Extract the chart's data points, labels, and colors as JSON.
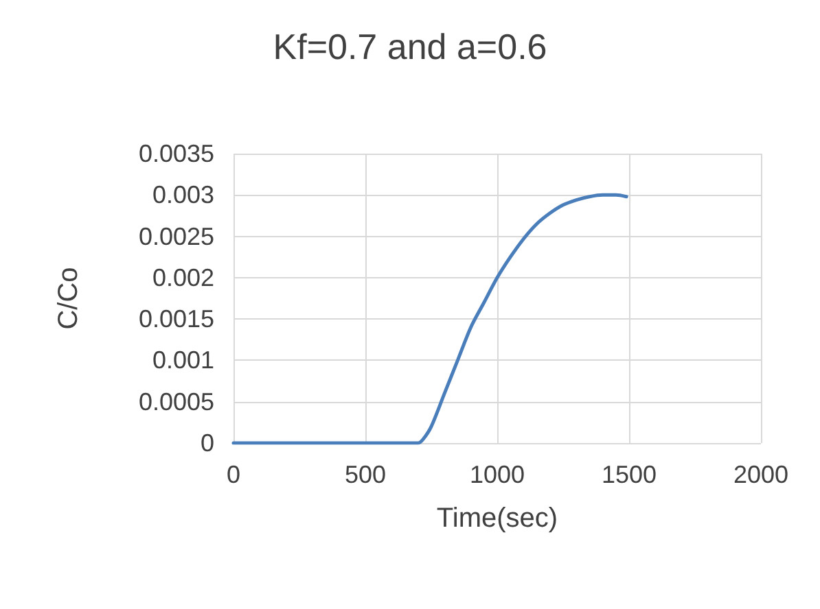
{
  "chart_data": {
    "type": "line",
    "title": "Kf=0.7 and a=0.6",
    "xlabel": "Time(sec)",
    "ylabel": "C/Co",
    "x": [
      0,
      100,
      200,
      300,
      400,
      500,
      600,
      700,
      720,
      750,
      800,
      850,
      900,
      950,
      1000,
      1050,
      1100,
      1150,
      1200,
      1250,
      1300,
      1350,
      1400,
      1450,
      1490
    ],
    "series": [
      {
        "color": "#4a7ebb",
        "values": [
          0,
          0,
          0,
          0,
          0,
          0,
          0,
          0,
          5e-05,
          0.0002,
          0.0006,
          0.001,
          0.0014,
          0.0017,
          0.002,
          0.00225,
          0.00247,
          0.00265,
          0.00278,
          0.00288,
          0.00294,
          0.00298,
          0.003,
          0.003,
          0.00298
        ]
      }
    ],
    "xlim": [
      0,
      2000
    ],
    "xticks": [
      0,
      500,
      1000,
      1500,
      2000
    ],
    "ylim": [
      0,
      0.0035
    ],
    "yticks": [
      0,
      0.0005,
      0.001,
      0.0015,
      0.002,
      0.0025,
      0.003,
      0.0035
    ],
    "grid": true,
    "marker": "none",
    "line_style": "solid"
  }
}
